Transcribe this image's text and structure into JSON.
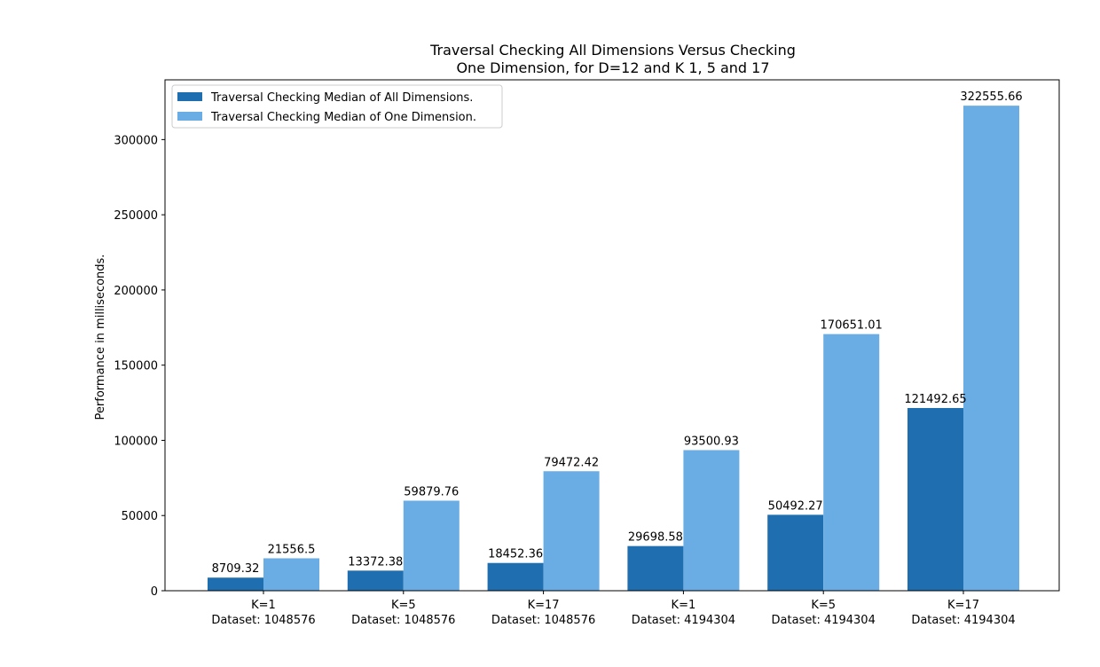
{
  "chart_data": {
    "type": "bar",
    "title_lines": [
      "Traversal Checking All Dimensions Versus Checking",
      "One Dimension, for D=12 and K 1, 5 and 17"
    ],
    "xlabel": "",
    "ylabel": "Performance in milliseconds.",
    "ylim": [
      0,
      339738.3
    ],
    "yticks": [
      0,
      50000,
      100000,
      150000,
      200000,
      250000,
      300000
    ],
    "categories": [
      [
        "K=1",
        "Dataset: 1048576"
      ],
      [
        "K=5",
        "Dataset: 1048576"
      ],
      [
        "K=17",
        "Dataset: 1048576"
      ],
      [
        "K=1",
        "Dataset: 4194304"
      ],
      [
        "K=5",
        "Dataset: 4194304"
      ],
      [
        "K=17",
        "Dataset: 4194304"
      ]
    ],
    "series": [
      {
        "name": "Traversal Checking Median of All Dimensions.",
        "color": "#1f6eaf",
        "values": [
          8709.32,
          13372.38,
          18452.36,
          29698.58,
          50492.27,
          121492.65
        ],
        "labels": [
          "8709.32",
          "13372.38",
          "18452.36",
          "29698.58",
          "50492.27",
          "121492.65"
        ]
      },
      {
        "name": "Traversal Checking Median of One Dimension.",
        "color": "#6aade4",
        "values": [
          21556.5,
          59879.76,
          79472.42,
          93500.93,
          170651.01,
          322555.66
        ],
        "labels": [
          "21556.5",
          "59879.76",
          "79472.42",
          "93500.93",
          "170651.01",
          "322555.66"
        ]
      }
    ],
    "grid": false,
    "legend_position": "upper-left"
  }
}
